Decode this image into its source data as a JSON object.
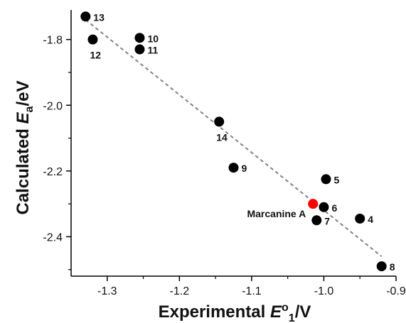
{
  "chart_data": {
    "type": "scatter",
    "xlabel": {
      "prefix": "Experimental ",
      "symbol": "E",
      "sup": "o",
      "sub": "1",
      "suffix": "/V"
    },
    "ylabel": {
      "prefix": "Calculated ",
      "symbol": "E",
      "sub": "a",
      "suffix": "/eV"
    },
    "xlim": [
      -1.35,
      -0.9
    ],
    "ylim": [
      -2.52,
      -1.71
    ],
    "xticks": [
      -1.3,
      -1.2,
      -1.1,
      -1.0,
      -0.9
    ],
    "xtick_labels": [
      "-1.3",
      "-1.2",
      "-1.1",
      "-1.0",
      "-0.9"
    ],
    "yticks": [
      -1.8,
      -2.0,
      -2.2,
      -2.4
    ],
    "ytick_labels": [
      "-1.8",
      "-2.0",
      "-2.2",
      "-2.4"
    ],
    "grid": false,
    "marker_color": "#000000",
    "highlight_color": "#ff0000",
    "trendline_color": "#7f7f7f",
    "points": [
      {
        "label": "13",
        "x": -1.33,
        "y": -1.73,
        "label_pos": "right"
      },
      {
        "label": "12",
        "x": -1.32,
        "y": -1.8,
        "label_pos": "below"
      },
      {
        "label": "10",
        "x": -1.255,
        "y": -1.795,
        "label_pos": "right"
      },
      {
        "label": "11",
        "x": -1.255,
        "y": -1.83,
        "label_pos": "right"
      },
      {
        "label": "14",
        "x": -1.145,
        "y": -2.05,
        "label_pos": "below"
      },
      {
        "label": "9",
        "x": -1.125,
        "y": -2.19,
        "label_pos": "right"
      },
      {
        "label": "5",
        "x": -0.997,
        "y": -2.225,
        "label_pos": "right"
      },
      {
        "label": "6",
        "x": -1.0,
        "y": -2.31,
        "label_pos": "right"
      },
      {
        "label": "7",
        "x": -1.01,
        "y": -2.35,
        "label_pos": "right"
      },
      {
        "label": "4",
        "x": -0.95,
        "y": -2.345,
        "label_pos": "right"
      },
      {
        "label": "8",
        "x": -0.92,
        "y": -2.49,
        "label_pos": "right"
      },
      {
        "label": "Marcanine A",
        "x": -1.015,
        "y": -2.3,
        "label_pos": "left",
        "highlight": true
      }
    ],
    "trendline": {
      "x": [
        -1.33,
        -0.92
      ],
      "y": [
        -1.74,
        -2.46
      ]
    }
  }
}
